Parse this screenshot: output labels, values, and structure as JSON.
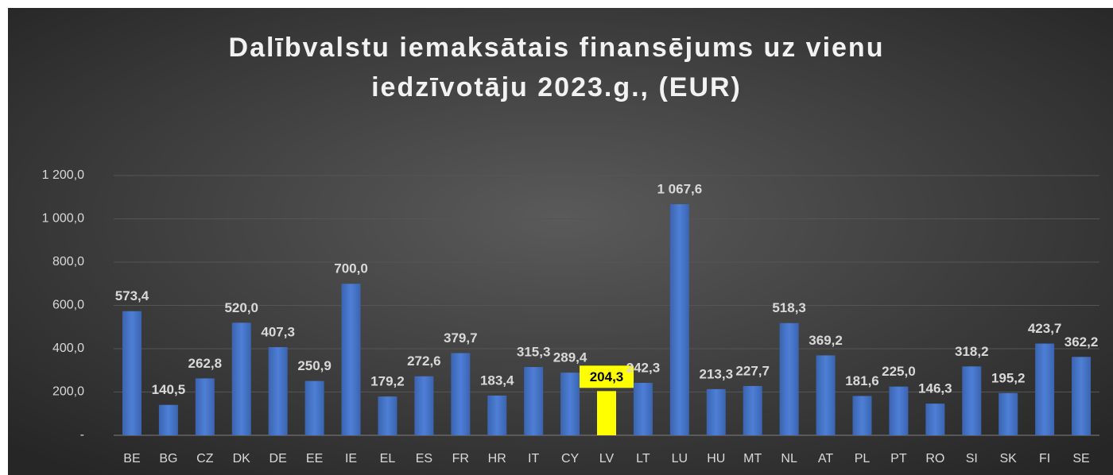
{
  "chart_data": {
    "type": "bar",
    "title": [
      "Dalībvalstu iemaksātais finansējums uz vienu",
      "iedzīvotāju 2023.g., (EUR)"
    ],
    "categories": [
      "BE",
      "BG",
      "CZ",
      "DK",
      "DE",
      "EE",
      "IE",
      "EL",
      "ES",
      "FR",
      "HR",
      "IT",
      "CY",
      "LV",
      "LT",
      "LU",
      "HU",
      "MT",
      "NL",
      "AT",
      "PL",
      "PT",
      "RO",
      "SI",
      "SK",
      "FI",
      "SE"
    ],
    "values": [
      573.4,
      140.5,
      262.8,
      520.0,
      407.3,
      250.9,
      700.0,
      179.2,
      272.6,
      379.7,
      183.4,
      315.3,
      289.4,
      204.3,
      242.3,
      1067.6,
      213.3,
      227.7,
      518.3,
      369.2,
      181.6,
      225.0,
      146.3,
      318.2,
      195.2,
      423.7,
      362.2
    ],
    "value_labels": [
      "573,4",
      "140,5",
      "262,8",
      "520,0",
      "407,3",
      "250,9",
      "700,0",
      "179,2",
      "272,6",
      "379,7",
      "183,4",
      "315,3",
      "289,4",
      "204,3",
      "242,3",
      "1 067,6",
      "213,3",
      "227,7",
      "518,3",
      "369,2",
      "181,6",
      "225,0",
      "146,3",
      "318,2",
      "195,2",
      "423,7",
      "362,2"
    ],
    "color": "#4472c4",
    "colors": [
      "#4472c4",
      "#4472c4",
      "#4472c4",
      "#4472c4",
      "#4472c4",
      "#4472c4",
      "#4472c4",
      "#4472c4",
      "#4472c4",
      "#4472c4",
      "#4472c4",
      "#4472c4",
      "#4472c4",
      "#ffff00",
      "#4472c4",
      "#4472c4",
      "#4472c4",
      "#4472c4",
      "#4472c4",
      "#4472c4",
      "#4472c4",
      "#4472c4",
      "#4472c4",
      "#4472c4",
      "#4472c4",
      "#4472c4",
      "#4472c4"
    ],
    "ylim": [
      0,
      1200
    ],
    "yticks": [
      {
        "value": 0,
        "label": "-"
      },
      {
        "value": 200,
        "label": "200,0"
      },
      {
        "value": 400,
        "label": "400,0"
      },
      {
        "value": 600,
        "label": "600,0"
      },
      {
        "value": 800,
        "label": "800,0"
      },
      {
        "value": 1000,
        "label": "1 000,0"
      },
      {
        "value": 1200,
        "label": "1 200,0"
      }
    ],
    "grid": true
  }
}
